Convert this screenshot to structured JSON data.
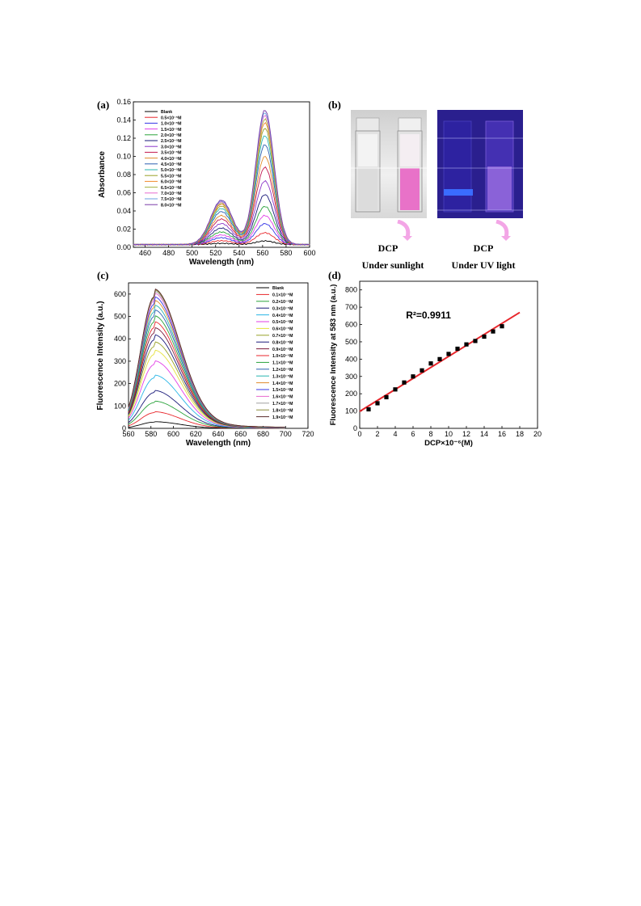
{
  "figure": {
    "label_a": "(a)",
    "label_b": "(b)",
    "label_c": "(c)",
    "label_d": "(d)"
  },
  "panel_b": {
    "left_reagent": "DCP",
    "right_reagent": "DCP",
    "left_caption": "Under sunlight",
    "right_caption": "Under UV light"
  },
  "chart_data": [
    {
      "id": "a",
      "type": "line",
      "title": "",
      "xlabel": "Wavelength (nm)",
      "ylabel": "Absorbance",
      "xlim": [
        450,
        600
      ],
      "ylim": [
        0,
        0.16
      ],
      "xticks": [
        460,
        480,
        500,
        520,
        540,
        560,
        580,
        600
      ],
      "yticks": [
        0.0,
        0.02,
        0.04,
        0.06,
        0.08,
        0.1,
        0.12,
        0.14,
        0.16
      ],
      "legend_position": "top-left",
      "peak_x": 562,
      "shoulder_x": 525,
      "series": [
        {
          "name": "Blank",
          "peak": 0.004,
          "color": "#000000"
        },
        {
          "name": "0.5×10⁻⁵M",
          "peak": 0.013,
          "color": "#e8262b"
        },
        {
          "name": "1.0×10⁻⁵M",
          "peak": 0.023,
          "color": "#3535e6"
        },
        {
          "name": "1.5×10⁻⁵M",
          "peak": 0.032,
          "color": "#e23ee6"
        },
        {
          "name": "2.0×10⁻⁵M",
          "peak": 0.042,
          "color": "#2aa33b"
        },
        {
          "name": "2.5×10⁻⁵M",
          "peak": 0.055,
          "color": "#1a1a7a"
        },
        {
          "name": "3.0×10⁻⁵M",
          "peak": 0.07,
          "color": "#8a35c9"
        },
        {
          "name": "3.5×10⁻⁵M",
          "peak": 0.085,
          "color": "#c2184f"
        },
        {
          "name": "4.0×10⁻⁵M",
          "peak": 0.097,
          "color": "#e08a2a"
        },
        {
          "name": "4.5×10⁻⁵M",
          "peak": 0.11,
          "color": "#2b5fb0"
        },
        {
          "name": "5.0×10⁻⁵M",
          "peak": 0.12,
          "color": "#27b5b0"
        },
        {
          "name": "5.5×10⁻⁵M",
          "peak": 0.128,
          "color": "#98a128"
        },
        {
          "name": "6.0×10⁻⁵M",
          "peak": 0.134,
          "color": "#f08a2e"
        },
        {
          "name": "6.5×10⁻⁵M",
          "peak": 0.138,
          "color": "#a0b040"
        },
        {
          "name": "7.0×10⁻⁵M",
          "peak": 0.142,
          "color": "#e86ad0"
        },
        {
          "name": "7.5×10⁻⁵M",
          "peak": 0.145,
          "color": "#6aa0e0"
        },
        {
          "name": "8.0×10⁻⁵M",
          "peak": 0.148,
          "color": "#7a3aa8"
        }
      ]
    },
    {
      "id": "c",
      "type": "line",
      "title": "",
      "xlabel": "Wavelength (nm)",
      "ylabel": "Fluorescence Intensity (a.u.)",
      "xlim": [
        560,
        720
      ],
      "ylim": [
        0,
        650
      ],
      "xticks": [
        560,
        580,
        600,
        620,
        640,
        660,
        680,
        700,
        720
      ],
      "yticks": [
        0,
        100,
        200,
        300,
        400,
        500,
        600
      ],
      "legend_position": "top-right",
      "peak_x": 583,
      "series": [
        {
          "name": "Blank",
          "peak": 28,
          "color": "#000000"
        },
        {
          "name": "0.1×10⁻⁵M",
          "peak": 70,
          "color": "#e8262b"
        },
        {
          "name": "0.2×10⁻⁵M",
          "peak": 115,
          "color": "#2aa33b"
        },
        {
          "name": "0.3×10⁻⁵M",
          "peak": 160,
          "color": "#1a1a7a"
        },
        {
          "name": "0.4×10⁻⁵M",
          "peak": 225,
          "color": "#27b5e6"
        },
        {
          "name": "0.5×10⁻⁵M",
          "peak": 285,
          "color": "#e23ee6"
        },
        {
          "name": "0.6×10⁻⁵M",
          "peak": 330,
          "color": "#e6e23e"
        },
        {
          "name": "0.7×10⁻⁵M",
          "peak": 365,
          "color": "#98a128"
        },
        {
          "name": "0.8×10⁻⁵M",
          "peak": 395,
          "color": "#1a1a7a"
        },
        {
          "name": "0.9×10⁻⁵M",
          "peak": 425,
          "color": "#7a1a3a"
        },
        {
          "name": "1.0×10⁻⁵M",
          "peak": 450,
          "color": "#e8262b"
        },
        {
          "name": "1.1×10⁻⁵M",
          "peak": 475,
          "color": "#2aa33b"
        },
        {
          "name": "1.2×10⁻⁵M",
          "peak": 500,
          "color": "#2b5fb0"
        },
        {
          "name": "1.3×10⁻⁵M",
          "peak": 520,
          "color": "#27b5b0"
        },
        {
          "name": "1.4×10⁻⁵M",
          "peak": 540,
          "color": "#e08a2a"
        },
        {
          "name": "1.5×10⁻⁵M",
          "peak": 555,
          "color": "#3535e6"
        },
        {
          "name": "1.6×10⁻⁵M",
          "peak": 570,
          "color": "#e86ad0"
        },
        {
          "name": "1.7×10⁻⁵M",
          "peak": 578,
          "color": "#a0a0a0"
        },
        {
          "name": "1.8×10⁻⁵M",
          "peak": 584,
          "color": "#8a8a3a"
        },
        {
          "name": "1.9×10⁻⁵M",
          "peak": 588,
          "color": "#5a2a2a"
        }
      ]
    },
    {
      "id": "d",
      "type": "scatter",
      "title": "",
      "xlabel": "DCP×10⁻⁶(M)",
      "ylabel": "Fluorescence Intensity at 583 nm (a.u.)",
      "xlim": [
        0,
        20
      ],
      "ylim": [
        0,
        850
      ],
      "xticks": [
        0,
        2,
        4,
        6,
        8,
        10,
        12,
        14,
        16,
        18,
        20
      ],
      "yticks": [
        0,
        100,
        200,
        300,
        400,
        500,
        600,
        700,
        800
      ],
      "annotation": "R²=0.9911",
      "points": {
        "x": [
          1,
          2,
          3,
          4,
          5,
          6,
          7,
          8,
          9,
          10,
          11,
          12,
          13,
          14,
          15,
          16
        ],
        "y": [
          110,
          145,
          180,
          225,
          265,
          300,
          335,
          375,
          400,
          430,
          460,
          485,
          505,
          530,
          560,
          590
        ]
      },
      "fit": {
        "x": [
          0,
          18
        ],
        "y": [
          98,
          670
        ],
        "color": "#e8262b"
      }
    }
  ]
}
